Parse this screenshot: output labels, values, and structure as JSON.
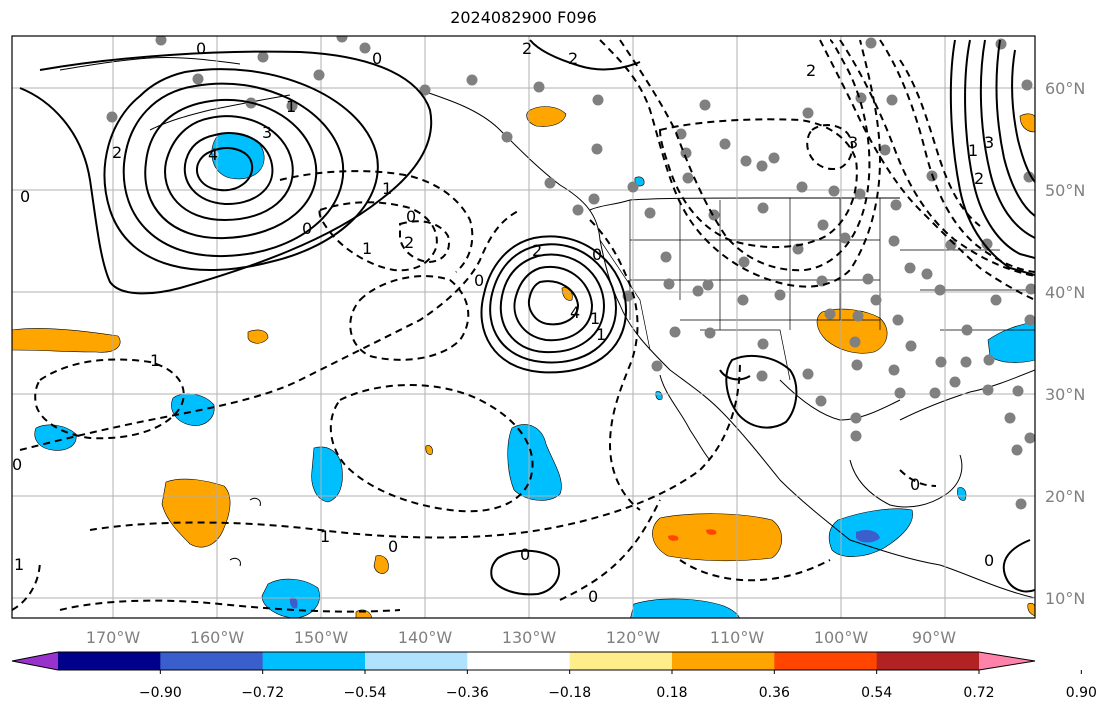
{
  "title": "2024082900 F096",
  "map": {
    "lon_range": [
      -180,
      -82
    ],
    "lat_range": [
      8,
      65
    ],
    "lon_ticks": [
      "170°W",
      "160°W",
      "150°W",
      "140°W",
      "130°W",
      "120°W",
      "110°W",
      "100°W",
      "90°W"
    ],
    "lat_ticks": [
      "60°N",
      "50°N",
      "40°N",
      "30°N",
      "20°N",
      "10°N"
    ],
    "grid": true,
    "contour_labels": [
      "0",
      "2",
      "0",
      "2",
      "1",
      "2",
      "3",
      "4",
      "1",
      "0",
      "0",
      "1",
      "2",
      "0",
      "2",
      "3",
      "2",
      "1",
      "3",
      "4",
      "1",
      "2",
      "1",
      "0",
      "1",
      "0",
      "0",
      "0",
      "0",
      "0",
      "0",
      "1",
      "1",
      "0"
    ],
    "station_marker_color": "#808080"
  },
  "colorbar": {
    "colors": [
      "#9932cc",
      "#00008b",
      "#3a5fcd",
      "#00bfff",
      "#b0e2ff",
      "#ffffff",
      "#ffec8b",
      "#ffa500",
      "#ff4500",
      "#b22222",
      "#ff82ab"
    ],
    "ticks": [
      "−0.90",
      "−0.72",
      "−0.54",
      "−0.36",
      "−0.18",
      "0.18",
      "0.36",
      "0.54",
      "0.72",
      "0.90"
    ]
  }
}
